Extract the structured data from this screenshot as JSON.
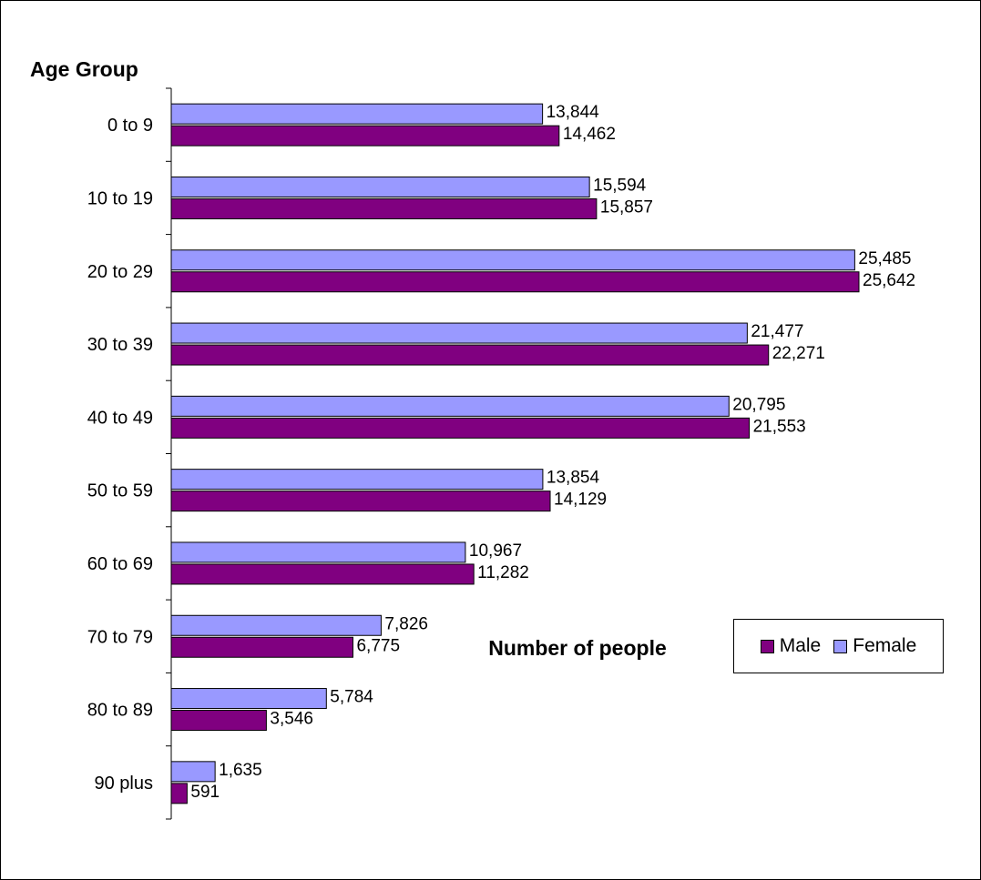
{
  "chart_data": {
    "type": "bar",
    "orientation": "horizontal",
    "ylabel": "Age Group",
    "xlabel": "Number of people",
    "categories": [
      "0 to 9",
      "10 to 19",
      "20 to 29",
      "30 to 39",
      "40 to 49",
      "50 to 59",
      "60 to 69",
      "70 to 79",
      "80 to 89",
      "90 plus"
    ],
    "series": [
      {
        "name": "Female",
        "color": "#9999ff",
        "values": [
          13844,
          15594,
          25485,
          21477,
          20795,
          13854,
          10967,
          7826,
          5784,
          1635
        ],
        "labels": [
          "13,844",
          "15,594",
          "25,485",
          "21,477",
          "20,795",
          "13,854",
          "10,967",
          "7,826",
          "5,784",
          "1,635"
        ]
      },
      {
        "name": "Male",
        "color": "#800080",
        "values": [
          14462,
          15857,
          25642,
          22271,
          21553,
          14129,
          11282,
          6775,
          3546,
          591
        ],
        "labels": [
          "14,462",
          "15,857",
          "25,642",
          "22,271",
          "21,553",
          "14,129",
          "11,282",
          "6,775",
          "3,546",
          "591"
        ]
      }
    ],
    "xlim": [
      0,
      30000
    ],
    "grid": false,
    "legend_position": "right",
    "legend": [
      {
        "name": "Male",
        "color": "#800080"
      },
      {
        "name": "Female",
        "color": "#9999ff"
      }
    ]
  }
}
